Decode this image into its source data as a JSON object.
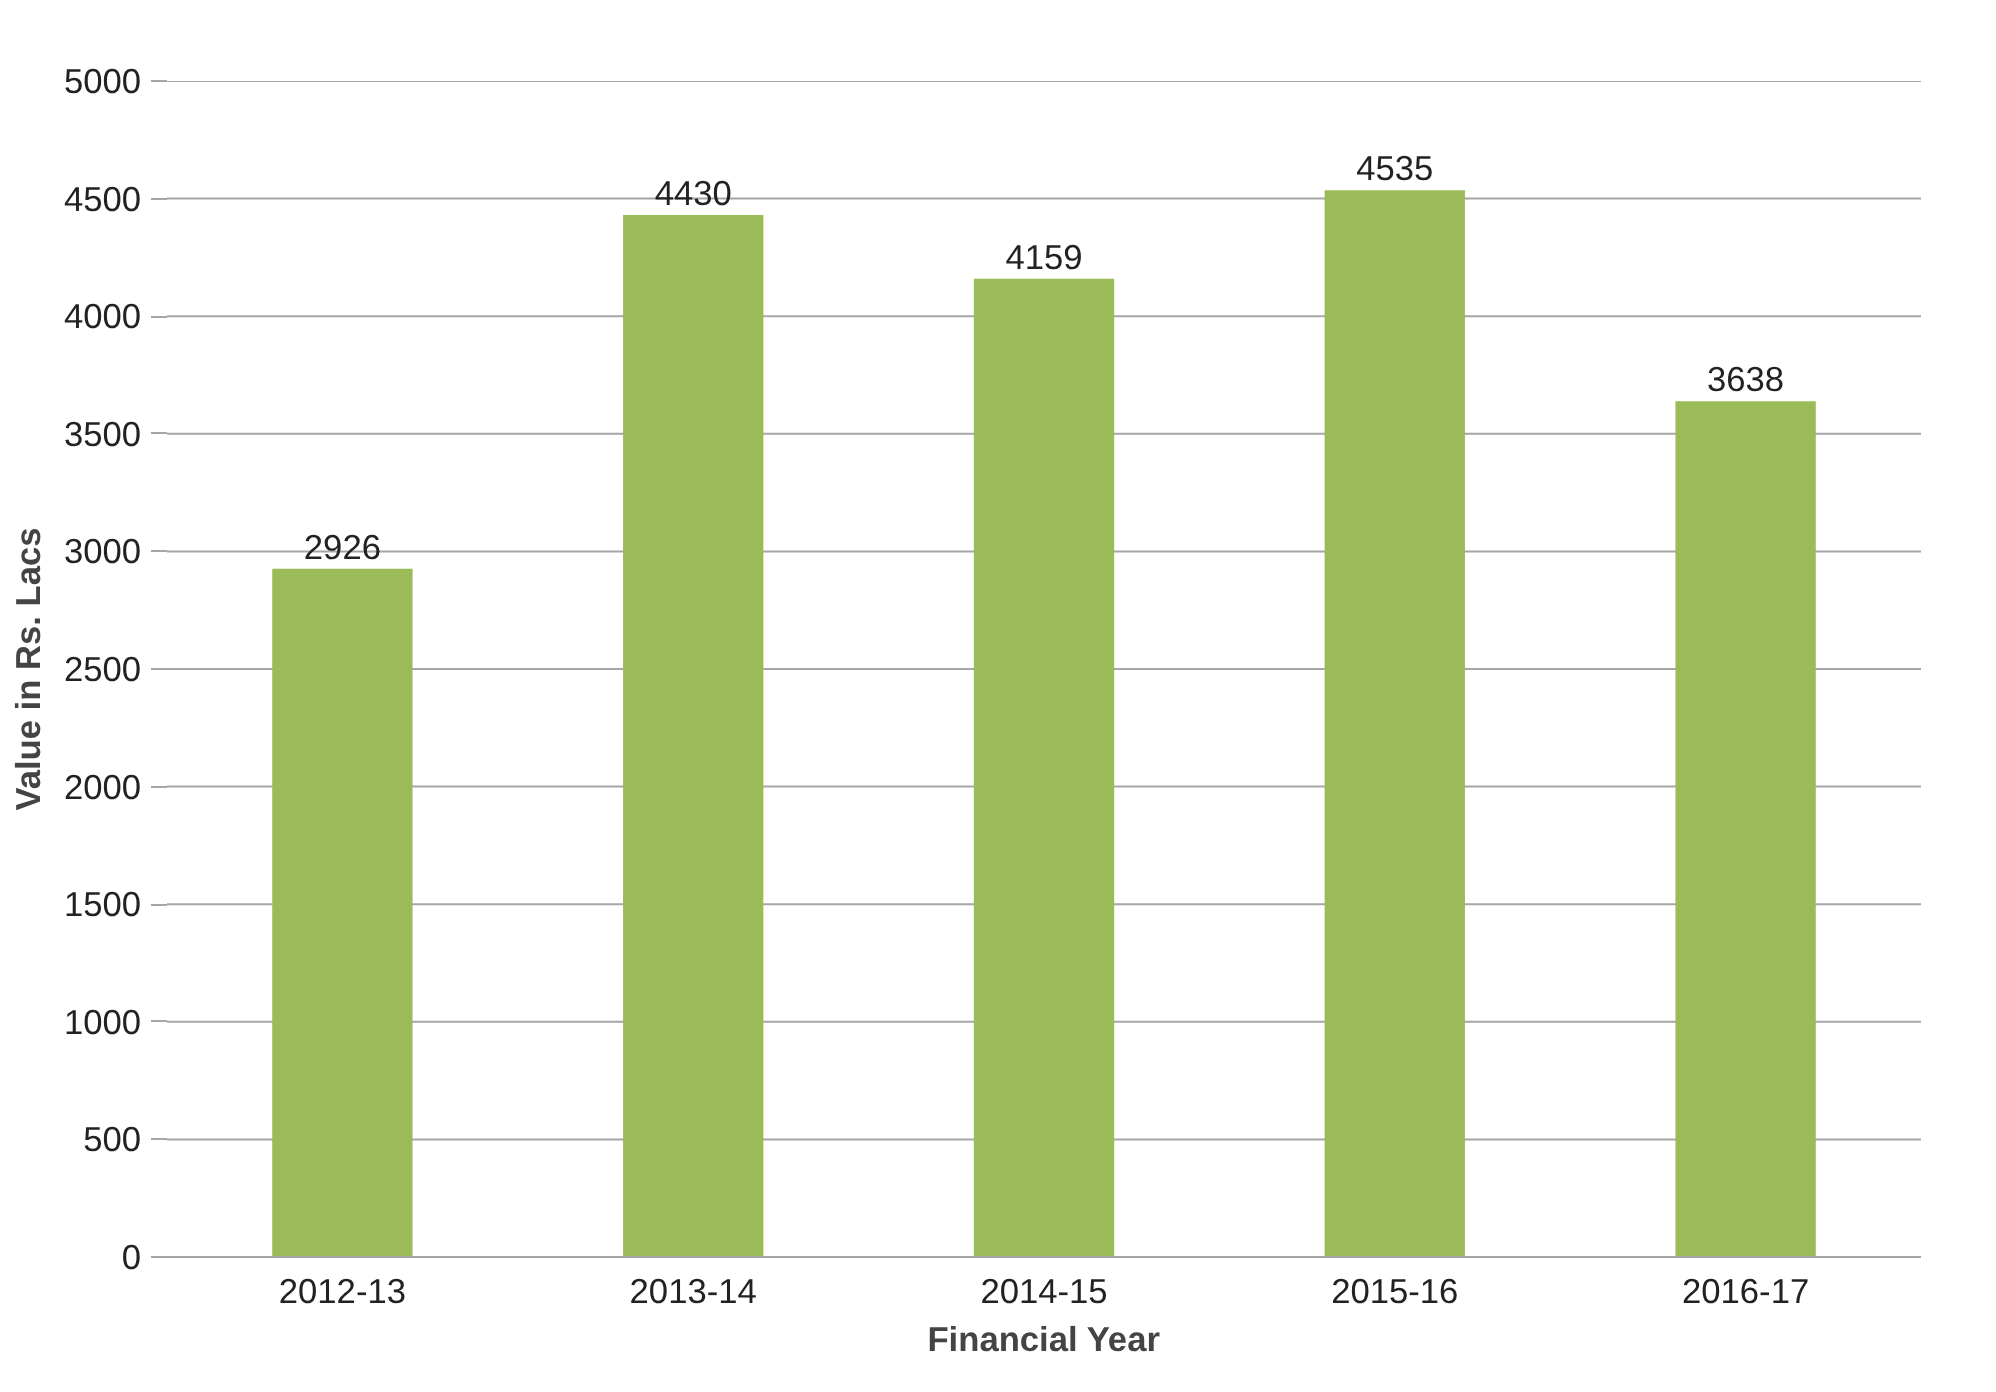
{
  "chart_data": {
    "type": "bar",
    "xlabel": "Financial Year",
    "ylabel": "Value in Rs. Lacs",
    "categories": [
      "2012-13",
      "2013-14",
      "2014-15",
      "2015-16",
      "2016-17"
    ],
    "values": [
      2926,
      4430,
      4159,
      4535,
      3638
    ],
    "color": "#9bbb59",
    "ylim": [
      0,
      5000
    ],
    "yticks": [
      0,
      500,
      1000,
      1500,
      2000,
      2500,
      3000,
      3500,
      4000,
      4500,
      5000
    ],
    "grid": "y",
    "data_labels": true
  }
}
